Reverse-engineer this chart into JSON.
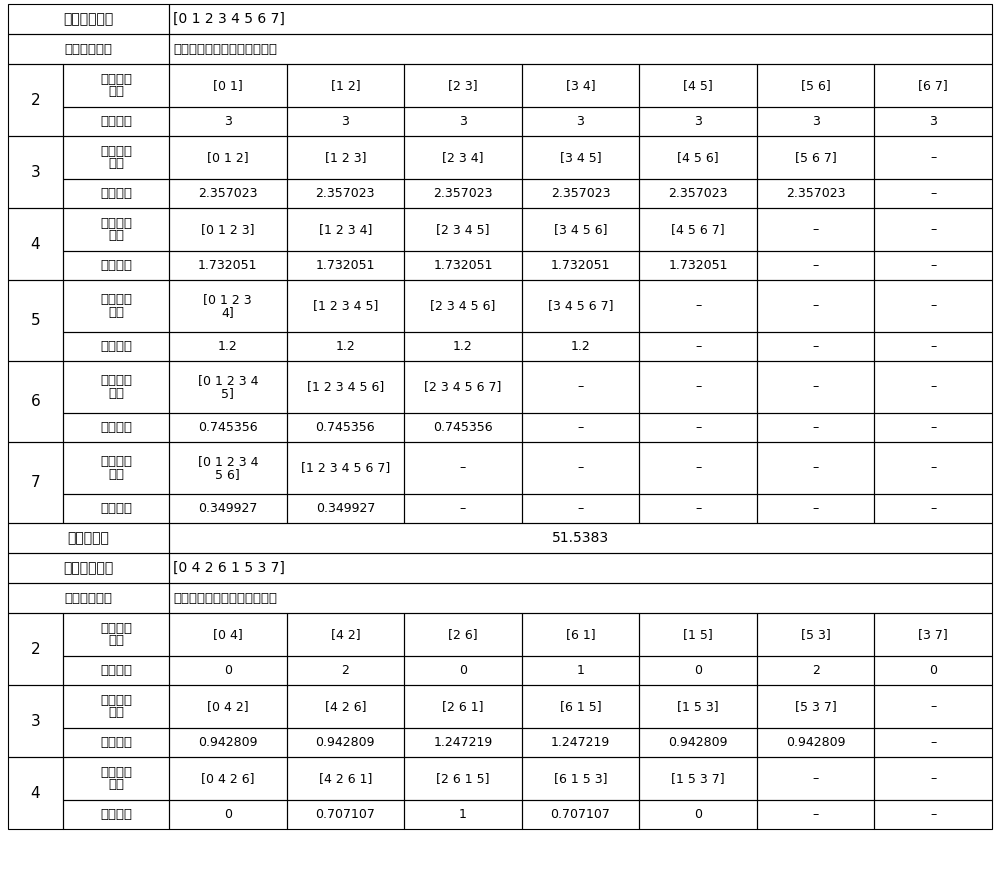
{
  "bg_color": "#ffffff",
  "section1_header_label": "时隙映射方案",
  "section1_header_val": "[0 1 2 3 4 5 6 7]",
  "col_header1": "分配时隙数目",
  "col_header2": "各种时隙分配组合的均方误差",
  "slot_combo_line1": "时隙分配",
  "slot_combo_line2": "组合",
  "mse_label": "均方误差",
  "mse_sum_label": "均方误差和",
  "mse_sum_val": "51.5383",
  "section2_header_label": "时隙映射方案",
  "section2_header_val": "[0 4 2 6 1 5 3 7]",
  "dash": "–",
  "table1_rows": [
    {
      "n": "2",
      "combos": [
        "[0 1]",
        "[1 2]",
        "[2 3]",
        "[3 4]",
        "[4 5]",
        "[5 6]",
        "[6 7]"
      ],
      "mse": [
        "3",
        "3",
        "3",
        "3",
        "3",
        "3",
        "3"
      ],
      "combo_multiline": false
    },
    {
      "n": "3",
      "combos": [
        "[0 1 2]",
        "[1 2 3]",
        "[2 3 4]",
        "[3 4 5]",
        "[4 5 6]",
        "[5 6 7]",
        "–"
      ],
      "mse": [
        "2.357023",
        "2.357023",
        "2.357023",
        "2.357023",
        "2.357023",
        "2.357023",
        "–"
      ],
      "combo_multiline": false
    },
    {
      "n": "4",
      "combos": [
        "[0 1 2 3]",
        "[1 2 3 4]",
        "[2 3 4 5]",
        "[3 4 5 6]",
        "[4 5 6 7]",
        "–",
        "–"
      ],
      "mse": [
        "1.732051",
        "1.732051",
        "1.732051",
        "1.732051",
        "1.732051",
        "–",
        "–"
      ],
      "combo_multiline": false
    },
    {
      "n": "5",
      "combos": [
        "[0 1 2 3\n4]",
        "[1 2 3 4 5]",
        "[2 3 4 5 6]",
        "[3 4 5 6 7]",
        "–",
        "–",
        "–"
      ],
      "mse": [
        "1.2",
        "1.2",
        "1.2",
        "1.2",
        "–",
        "–",
        "–"
      ],
      "combo_multiline": true
    },
    {
      "n": "6",
      "combos": [
        "[0 1 2 3 4\n5]",
        "[1 2 3 4 5 6]",
        "[2 3 4 5 6 7]",
        "–",
        "–",
        "–",
        "–"
      ],
      "mse": [
        "0.745356",
        "0.745356",
        "0.745356",
        "–",
        "–",
        "–",
        "–"
      ],
      "combo_multiline": true
    },
    {
      "n": "7",
      "combos": [
        "[0 1 2 3 4\n5 6]",
        "[1 2 3 4 5 6 7]",
        "–",
        "–",
        "–",
        "–",
        "–"
      ],
      "mse": [
        "0.349927",
        "0.349927",
        "–",
        "–",
        "–",
        "–",
        "–"
      ],
      "combo_multiline": true
    }
  ],
  "table2_rows": [
    {
      "n": "2",
      "combos": [
        "[0 4]",
        "[4 2]",
        "[2 6]",
        "[6 1]",
        "[1 5]",
        "[5 3]",
        "[3 7]"
      ],
      "mse": [
        "0",
        "2",
        "0",
        "1",
        "0",
        "2",
        "0"
      ],
      "combo_multiline": false
    },
    {
      "n": "3",
      "combos": [
        "[0 4 2]",
        "[4 2 6]",
        "[2 6 1]",
        "[6 1 5]",
        "[1 5 3]",
        "[5 3 7]",
        "–"
      ],
      "mse": [
        "0.942809",
        "0.942809",
        "1.247219",
        "1.247219",
        "0.942809",
        "0.942809",
        "–"
      ],
      "combo_multiline": false
    },
    {
      "n": "4",
      "combos": [
        "[0 4 2 6]",
        "[4 2 6 1]",
        "[2 6 1 5]",
        "[6 1 5 3]",
        "[1 5 3 7]",
        "–",
        "–"
      ],
      "mse": [
        "0",
        "0.707107",
        "1",
        "0.707107",
        "0",
        "–",
        "–"
      ],
      "combo_multiline": false
    }
  ]
}
